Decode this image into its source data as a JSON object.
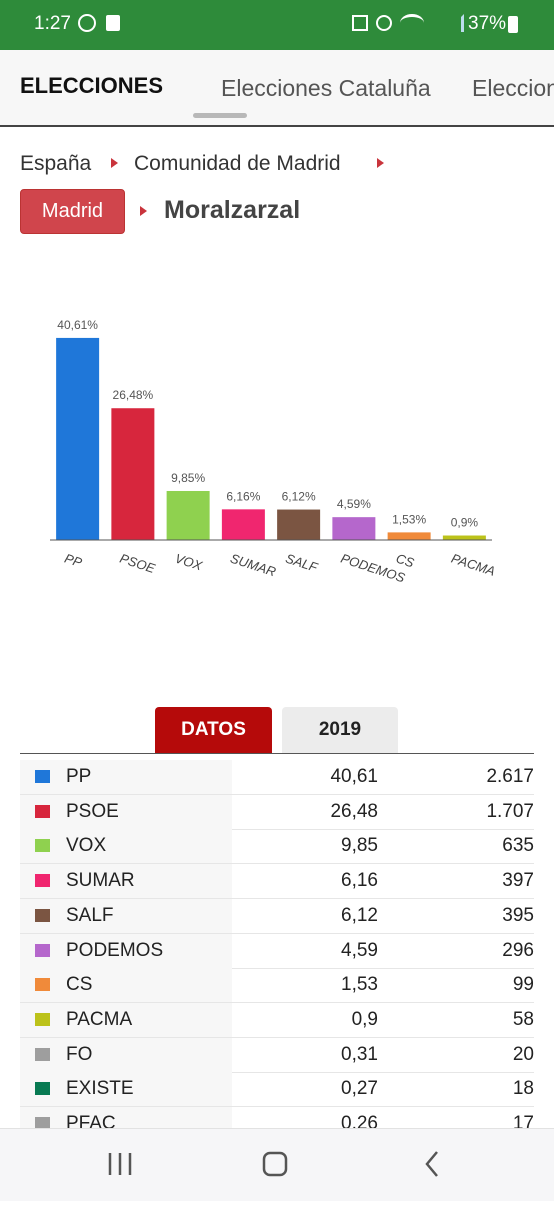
{
  "status_bar": {
    "time": "1:27",
    "battery": "37%"
  },
  "header": {
    "title": "ELECCIONES",
    "tabs": [
      "Elecciones Cataluña",
      "Elecciones"
    ]
  },
  "breadcrumb": {
    "items": [
      "España",
      "Comunidad de Madrid"
    ],
    "button": "Madrid",
    "current": "Moralzarzal"
  },
  "chart_data": {
    "type": "bar",
    "categories": [
      "PP",
      "PSOE",
      "VOX",
      "SUMAR",
      "SALF",
      "PODEMOS",
      "CS",
      "PACMA"
    ],
    "values": [
      40.61,
      26.48,
      9.85,
      6.16,
      6.12,
      4.59,
      1.53,
      0.9
    ],
    "value_labels": [
      "40,61%",
      "26,48%",
      "9,85%",
      "6,16%",
      "6,12%",
      "4,59%",
      "1,53%",
      "0,9%"
    ],
    "colors": [
      "#1f77d9",
      "#d7263d",
      "#8fd14f",
      "#f0266f",
      "#7b5542",
      "#b567cc",
      "#f08a3a",
      "#bcc21a"
    ],
    "ylim": [
      0,
      42
    ]
  },
  "table": {
    "tabs": [
      "DATOS",
      "2019"
    ],
    "rows": [
      {
        "color": "#1f77d9",
        "cells": [
          "PP",
          "40,61",
          "2.617"
        ]
      },
      {
        "color": "#d7263d",
        "cells": [
          "PSOE",
          "26,48",
          "1.707"
        ]
      },
      {
        "color": "#8fd14f",
        "cells": [
          "VOX",
          "9,85",
          "635"
        ]
      },
      {
        "color": "#f0266f",
        "cells": [
          "SUMAR",
          "6,16",
          "397"
        ]
      },
      {
        "color": "#7b5542",
        "cells": [
          "SALF",
          "6,12",
          "395"
        ]
      },
      {
        "color": "#b567cc",
        "cells": [
          "PODEMOS",
          "4,59",
          "296"
        ]
      },
      {
        "color": "#f08a3a",
        "cells": [
          "CS",
          "1,53",
          "99"
        ]
      },
      {
        "color": "#bcc21a",
        "cells": [
          "PACMA",
          "0,9",
          "58"
        ]
      },
      {
        "color": "#9e9e9e",
        "cells": [
          "FO",
          "0,31",
          "20"
        ]
      },
      {
        "color": "#087a52",
        "cells": [
          "EXISTE",
          "0,27",
          "18"
        ]
      },
      {
        "color": "#9e9e9e",
        "cells": [
          "PFAC",
          "0,26",
          "17"
        ]
      }
    ]
  }
}
